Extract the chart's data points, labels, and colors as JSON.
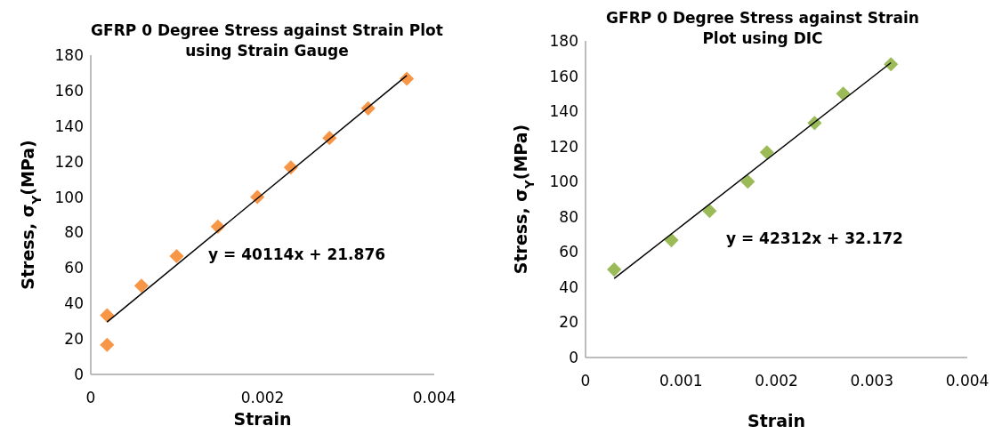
{
  "chart_data": [
    {
      "type": "scatter",
      "title": "GFRP 0 Degree Stress against Strain Plot using Strain Gauge",
      "xlabel": "Strain",
      "ylabel": "Stress, σ$_{Y}$(MPa)",
      "xlim": [
        0,
        0.004
      ],
      "xticks": [
        0,
        0.002,
        0.004
      ],
      "ylim": [
        0,
        180
      ],
      "yticks": [
        0,
        20,
        40,
        60,
        80,
        100,
        120,
        140,
        160,
        180
      ],
      "annotations": [
        "y = 40114x + 21.876"
      ],
      "series": [
        {
          "marker": "diamond",
          "color": "#f79646",
          "x": [
            0.00019,
            0.00019,
            0.00059,
            0.001,
            0.00148,
            0.00194,
            0.00233,
            0.00278,
            0.00323,
            0.00368
          ],
          "values": [
            16.7,
            33.3,
            50,
            66.7,
            83.3,
            100,
            116.7,
            133.3,
            150,
            166.7
          ]
        },
        {
          "type": "line",
          "color": "#000000",
          "x": [
            0.00019,
            0.00368
          ],
          "values": [
            29.5,
            168.5
          ]
        }
      ]
    },
    {
      "type": "scatter",
      "title": "GFRP 0 Degree Stress against Strain Plot using DIC",
      "xlabel": "Strain",
      "ylabel": "Stress, σ$_{Y}$(MPa)",
      "xlim": [
        0,
        0.004
      ],
      "xticks": [
        0,
        0.001,
        0.002,
        0.003,
        0.004
      ],
      "ylim": [
        0,
        180
      ],
      "yticks": [
        0,
        20,
        40,
        60,
        80,
        100,
        120,
        140,
        160,
        180
      ],
      "annotations": [
        "y = 42312x + 32.172"
      ],
      "series": [
        {
          "marker": "diamond",
          "color": "#9bbb59",
          "x": [
            0.0003,
            0.0009,
            0.0013,
            0.0017,
            0.0019,
            0.0024,
            0.0027,
            0.0032
          ],
          "values": [
            50,
            66.7,
            83.3,
            100,
            116.7,
            133.3,
            150,
            166.7
          ]
        },
        {
          "type": "line",
          "color": "#000000",
          "x": [
            0.0003,
            0.0032
          ],
          "values": [
            44.9,
            167.6
          ]
        }
      ]
    }
  ]
}
